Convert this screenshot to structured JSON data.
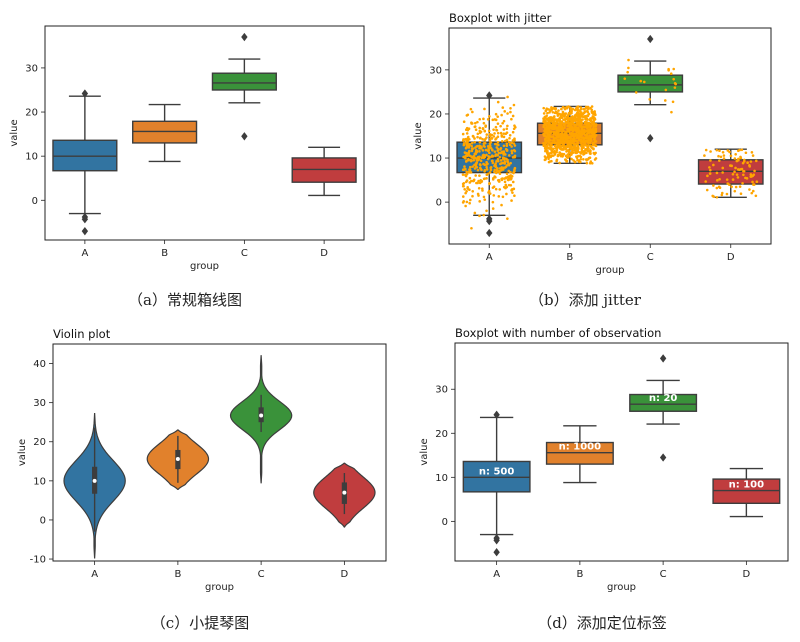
{
  "figure": {
    "captions": [
      "（a）常规箱线图",
      "（b）添加 jitter",
      "（c）小提琴图",
      "（d）添加定位标签"
    ]
  },
  "chart_data": [
    {
      "type": "box",
      "title": "",
      "xlabel": "group",
      "ylabel": "value",
      "categories": [
        "A",
        "B",
        "C",
        "D"
      ],
      "ylim": [
        -9,
        39.5
      ],
      "yticks": [
        0,
        10,
        20,
        30
      ],
      "colors": [
        "#3274a1",
        "#e1812c",
        "#3a923a",
        "#c03d3e"
      ],
      "boxes": [
        {
          "category": "A",
          "whisker_low": -3,
          "q1": 6.7,
          "median": 10,
          "q3": 13.6,
          "whisker_high": 23.6,
          "outliers": [
            24.2,
            -3.8,
            -4.3,
            -7
          ]
        },
        {
          "category": "B",
          "whisker_low": 8.8,
          "q1": 13,
          "median": 15.6,
          "q3": 17.9,
          "whisker_high": 21.7,
          "outliers": []
        },
        {
          "category": "C",
          "whisker_low": 22.1,
          "q1": 25,
          "median": 26.6,
          "q3": 28.8,
          "whisker_high": 32,
          "outliers": [
            37,
            14.5
          ]
        },
        {
          "category": "D",
          "whisker_low": 1.1,
          "q1": 4.1,
          "median": 7,
          "q3": 9.6,
          "whisker_high": 12,
          "outliers": []
        }
      ]
    },
    {
      "type": "box",
      "title": "Boxplot with jitter",
      "xlabel": "group",
      "ylabel": "value",
      "categories": [
        "A",
        "B",
        "C",
        "D"
      ],
      "ylim": [
        -9.5,
        39.5
      ],
      "yticks": [
        0,
        10,
        20,
        30
      ],
      "colors": [
        "#3274a1",
        "#e1812c",
        "#3a923a",
        "#c03d3e"
      ],
      "jitter_color": "#ffa500",
      "jitter_counts": [
        500,
        1000,
        20,
        100
      ],
      "boxes": [
        {
          "category": "A",
          "whisker_low": -3,
          "q1": 6.7,
          "median": 10,
          "q3": 13.6,
          "whisker_high": 23.6,
          "outliers": [
            24.2,
            -3.8,
            -4.3,
            -7
          ]
        },
        {
          "category": "B",
          "whisker_low": 8.8,
          "q1": 13,
          "median": 15.6,
          "q3": 17.9,
          "whisker_high": 21.7,
          "outliers": []
        },
        {
          "category": "C",
          "whisker_low": 22.1,
          "q1": 25,
          "median": 26.6,
          "q3": 28.8,
          "whisker_high": 32,
          "outliers": [
            37,
            14.5
          ]
        },
        {
          "category": "D",
          "whisker_low": 1.1,
          "q1": 4.1,
          "median": 7,
          "q3": 9.6,
          "whisker_high": 12,
          "outliers": []
        }
      ]
    },
    {
      "type": "violin",
      "title": "Violin plot",
      "xlabel": "group",
      "ylabel": "value",
      "categories": [
        "A",
        "B",
        "C",
        "D"
      ],
      "ylim": [
        -10.5,
        45
      ],
      "yticks": [
        -10,
        0,
        10,
        20,
        30,
        40
      ],
      "colors": [
        "#3274a1",
        "#e1812c",
        "#3a923a",
        "#c03d3e"
      ],
      "violins": [
        {
          "category": "A",
          "low": -9.7,
          "high": 27.2,
          "center": 10,
          "sd": 5.2,
          "q1": 6.7,
          "median": 10,
          "q3": 13.6,
          "whisker_low": -3,
          "whisker_high": 23.6
        },
        {
          "category": "B",
          "low": 7.8,
          "high": 23,
          "center": 15.6,
          "sd": 3,
          "q1": 13,
          "median": 15.6,
          "q3": 17.9,
          "whisker_low": 9.5,
          "whisker_high": 21.5
        },
        {
          "category": "C",
          "low": 9.5,
          "high": 42,
          "center": 26.7,
          "sd": 3.6,
          "q1": 25,
          "median": 26.7,
          "q3": 28.8,
          "whisker_low": 22.5,
          "whisker_high": 32
        },
        {
          "category": "D",
          "low": -1.8,
          "high": 14.5,
          "center": 7,
          "sd": 3,
          "q1": 4.1,
          "median": 7,
          "q3": 9.6,
          "whisker_low": 1.5,
          "whisker_high": 12
        }
      ]
    },
    {
      "type": "box",
      "title": "Boxplot with number of observation",
      "xlabel": "group",
      "ylabel": "value",
      "categories": [
        "A",
        "B",
        "C",
        "D"
      ],
      "ylim": [
        -9,
        40.5
      ],
      "yticks": [
        0,
        10,
        20,
        30
      ],
      "colors": [
        "#3274a1",
        "#e1812c",
        "#3a923a",
        "#c03d3e"
      ],
      "annotations": [
        "n: 500",
        "n: 1000",
        "n: 20",
        "n: 100"
      ],
      "boxes": [
        {
          "category": "A",
          "whisker_low": -3,
          "q1": 6.7,
          "median": 10,
          "q3": 13.6,
          "whisker_high": 23.6,
          "outliers": [
            24.2,
            -3.8,
            -4.3,
            -7
          ]
        },
        {
          "category": "B",
          "whisker_low": 8.8,
          "q1": 13,
          "median": 15.6,
          "q3": 17.9,
          "whisker_high": 21.7,
          "outliers": []
        },
        {
          "category": "C",
          "whisker_low": 22.1,
          "q1": 25,
          "median": 26.6,
          "q3": 28.8,
          "whisker_high": 32,
          "outliers": [
            37,
            14.5
          ]
        },
        {
          "category": "D",
          "whisker_low": 1.1,
          "q1": 4.1,
          "median": 7,
          "q3": 9.6,
          "whisker_high": 12,
          "outliers": []
        }
      ]
    }
  ]
}
